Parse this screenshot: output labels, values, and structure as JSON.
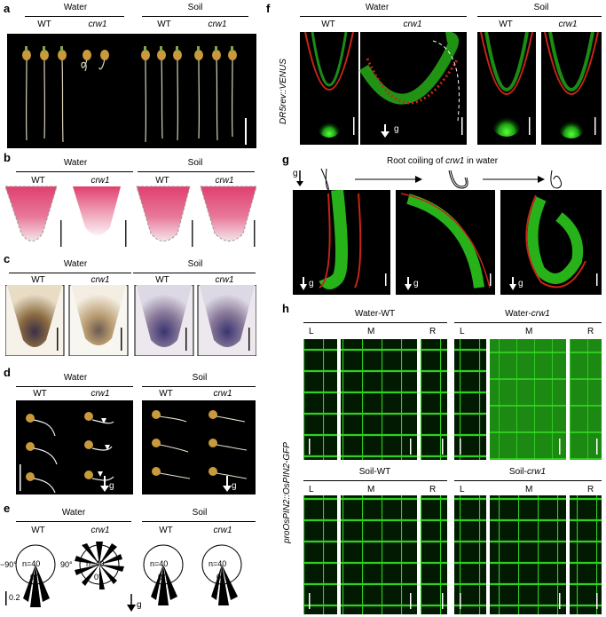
{
  "panels": {
    "a": {
      "letter": "a",
      "water": "Water",
      "soil": "Soil",
      "wt": "WT",
      "mut": "crw1"
    },
    "b": {
      "letter": "b",
      "water": "Water",
      "soil": "Soil",
      "wt": "WT",
      "mut": "crw1"
    },
    "c": {
      "letter": "c",
      "water": "Water",
      "soil": "Soil",
      "wt": "WT",
      "mut": "crw1"
    },
    "d": {
      "letter": "d",
      "water": "Water",
      "soil": "Soil",
      "wt": "WT",
      "mut": "crw1",
      "g": "g"
    },
    "e": {
      "letter": "e",
      "water": "Water",
      "soil": "Soil",
      "wt": "WT",
      "mut": "crw1",
      "n": "n=40",
      "zero": "0°",
      "minus90": "−90°",
      "plus90": "90°",
      "scale": "0.2",
      "g": "g"
    },
    "f": {
      "letter": "f",
      "water": "Water",
      "soil": "Soil",
      "wt": "WT",
      "mut": "crw1",
      "reporter": "DR5rev::VENUS",
      "g": "g"
    },
    "g": {
      "letter": "g",
      "title_pre": "Root coiling of ",
      "title_mut": "crw1",
      "title_post": " in water",
      "g": "g"
    },
    "h": {
      "letter": "h",
      "reporter": "proOsPIN2::OsPIN2-GFP",
      "groups": [
        {
          "pre": "Water-",
          "wt": "WT"
        },
        {
          "pre": "Water-",
          "mut": "crw1"
        },
        {
          "pre": "Soil-",
          "wt": "WT"
        },
        {
          "pre": "Soil-",
          "mut": "crw1"
        }
      ],
      "L": "L",
      "M": "M",
      "R": "R"
    }
  },
  "colors": {
    "fluor_green": "#22c41e",
    "fluor_red": "#d8281c",
    "stain_pink": "#e04a7a",
    "stain_brown": "#a07840",
    "stain_purple": "#4a3e78"
  }
}
